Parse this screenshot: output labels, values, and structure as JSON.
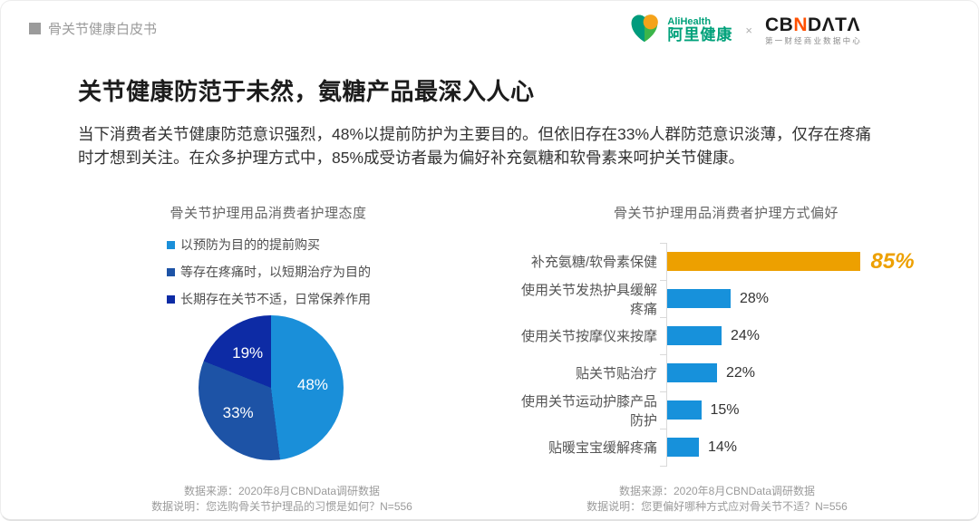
{
  "header": {
    "doc_tag": "骨关节健康白皮书"
  },
  "logos": {
    "alihealth_en": "AliHealth",
    "alihealth_cn": "阿里健康",
    "separator": "×",
    "cbn_c": "CB",
    "cbn_n": "N",
    "cbn_data": "DΛTΛ",
    "cbn_sub": "第一财经商业数据中心",
    "alihealth_green": "#00A17A",
    "cbn_orange": "#FF5000"
  },
  "title": "关节健康防范于未然，氨糖产品最深入人心",
  "paragraph": {
    "line1": "当下消费者关节健康防范意识强烈，48%以提前防护为主要目的。但依旧存在33%人群防范意识淡薄，仅存在疼痛",
    "line2": "时才想到关注。在众多护理方式中，85%成受访者最为偏好补充氨糖和软骨素来呵护关节健康。"
  },
  "chart_data": [
    {
      "type": "pie",
      "title": "骨关节护理用品消费者护理态度",
      "labels": [
        "以预防为目的的提前购买",
        "等存在疼痛时，以短期治疗为目的",
        "长期存在关节不适，日常保养作用"
      ],
      "values": [
        48,
        33,
        19
      ],
      "value_labels": [
        "48%",
        "33%",
        "19%"
      ],
      "colors": [
        "#1A8FD9",
        "#1D53A6",
        "#0D2BA5"
      ],
      "legend_position": "top",
      "start_angle_deg": 0,
      "direction": "clockwise",
      "source": "数据来源：2020年8月CBNData调研数据",
      "note": "数据说明：您选购骨关节护理品的习惯是如何？N=556"
    },
    {
      "type": "bar",
      "orientation": "horizontal",
      "title": "骨关节护理用品消费者护理方式偏好",
      "categories": [
        "补充氨糖/软骨素保健",
        "使用关节发热护具缓解疼痛",
        "使用关节按摩仪来按摩",
        "贴关节贴治疗",
        "使用关节运动护膝产品防护",
        "贴暖宝宝缓解疼痛"
      ],
      "values": [
        85,
        28,
        24,
        22,
        15,
        14
      ],
      "value_labels": [
        "85%",
        "28%",
        "24%",
        "22%",
        "15%",
        "14%"
      ],
      "bar_colors": [
        "#EDA000",
        "#1791DB",
        "#1791DB",
        "#1791DB",
        "#1791DB",
        "#1791DB"
      ],
      "hero_index": 0,
      "xlim": [
        0,
        100
      ],
      "grid": false,
      "source": "数据来源：2020年8月CBNData调研数据",
      "note": "数据说明：您更偏好哪种方式应对骨关节不适？N=556"
    }
  ]
}
